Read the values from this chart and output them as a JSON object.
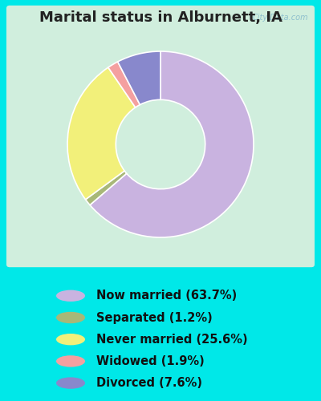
{
  "title": "Marital status in Alburnett, IA",
  "slices": [
    63.7,
    1.2,
    25.6,
    1.9,
    7.6
  ],
  "labels": [
    "Now married (63.7%)",
    "Separated (1.2%)",
    "Never married (25.6%)",
    "Widowed (1.9%)",
    "Divorced (7.6%)"
  ],
  "colors": [
    "#c9b3e0",
    "#a8b878",
    "#f2f07a",
    "#f4a0a0",
    "#8888cc"
  ],
  "bg_outer": "#00e8e8",
  "bg_inner_color": "#d0eedd",
  "watermark": "City-Data.com",
  "title_fontsize": 13,
  "title_color": "#222222",
  "legend_fontsize": 10.5,
  "donut_width": 0.52,
  "startangle": 90
}
